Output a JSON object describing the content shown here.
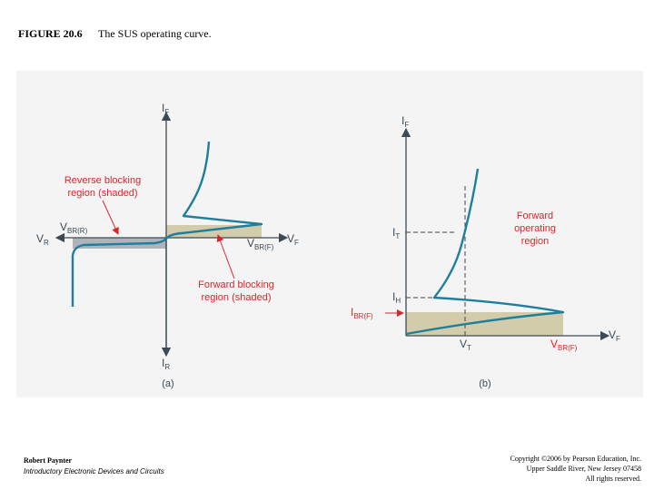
{
  "caption": {
    "number": "FIGURE 20.6",
    "title": "The SUS operating curve."
  },
  "panel_a": {
    "axis_if": {
      "main": "I",
      "sub": "F"
    },
    "axis_ir": {
      "main": "I",
      "sub": "R"
    },
    "axis_vf": {
      "main": "V",
      "sub": "F"
    },
    "axis_vr": {
      "main": "V",
      "sub": "R"
    },
    "vbr_r": {
      "main": "V",
      "sub": "BR(R)"
    },
    "vbr_f": {
      "main": "V",
      "sub": "BR(F)"
    },
    "reverse_label": [
      "Reverse blocking",
      "region (shaded)"
    ],
    "forward_label": [
      "Forward blocking",
      "region (shaded)"
    ],
    "panel_label": "(a)"
  },
  "panel_b": {
    "axis_if": {
      "main": "I",
      "sub": "F"
    },
    "axis_vf": {
      "main": "V",
      "sub": "F"
    },
    "it": {
      "main": "I",
      "sub": "T"
    },
    "ih": {
      "main": "I",
      "sub": "H"
    },
    "ibr_f": {
      "main": "I",
      "sub": "BR(F)"
    },
    "vt": {
      "main": "V",
      "sub": "T"
    },
    "vbr_f": {
      "main": "V",
      "sub": "BR(F)"
    },
    "forward_label": [
      "Forward",
      "operating",
      "region"
    ],
    "panel_label": "(b)"
  },
  "footer": {
    "author": "Robert Paynter",
    "book": "Introductory Electronic Devices and Circuits",
    "copyright": [
      "Copyright ©2006 by Pearson Education, Inc.",
      "Upper Saddle River, New Jersey 07458",
      "All rights reserved."
    ]
  },
  "colors": {
    "curve": "#1f7e9c",
    "shade_reverse": "#aeb4b9",
    "shade_forward": "#d2ccab",
    "accent": "#d9262a",
    "text": "#3b4a55",
    "panel_bg": "#f4f4f4"
  }
}
